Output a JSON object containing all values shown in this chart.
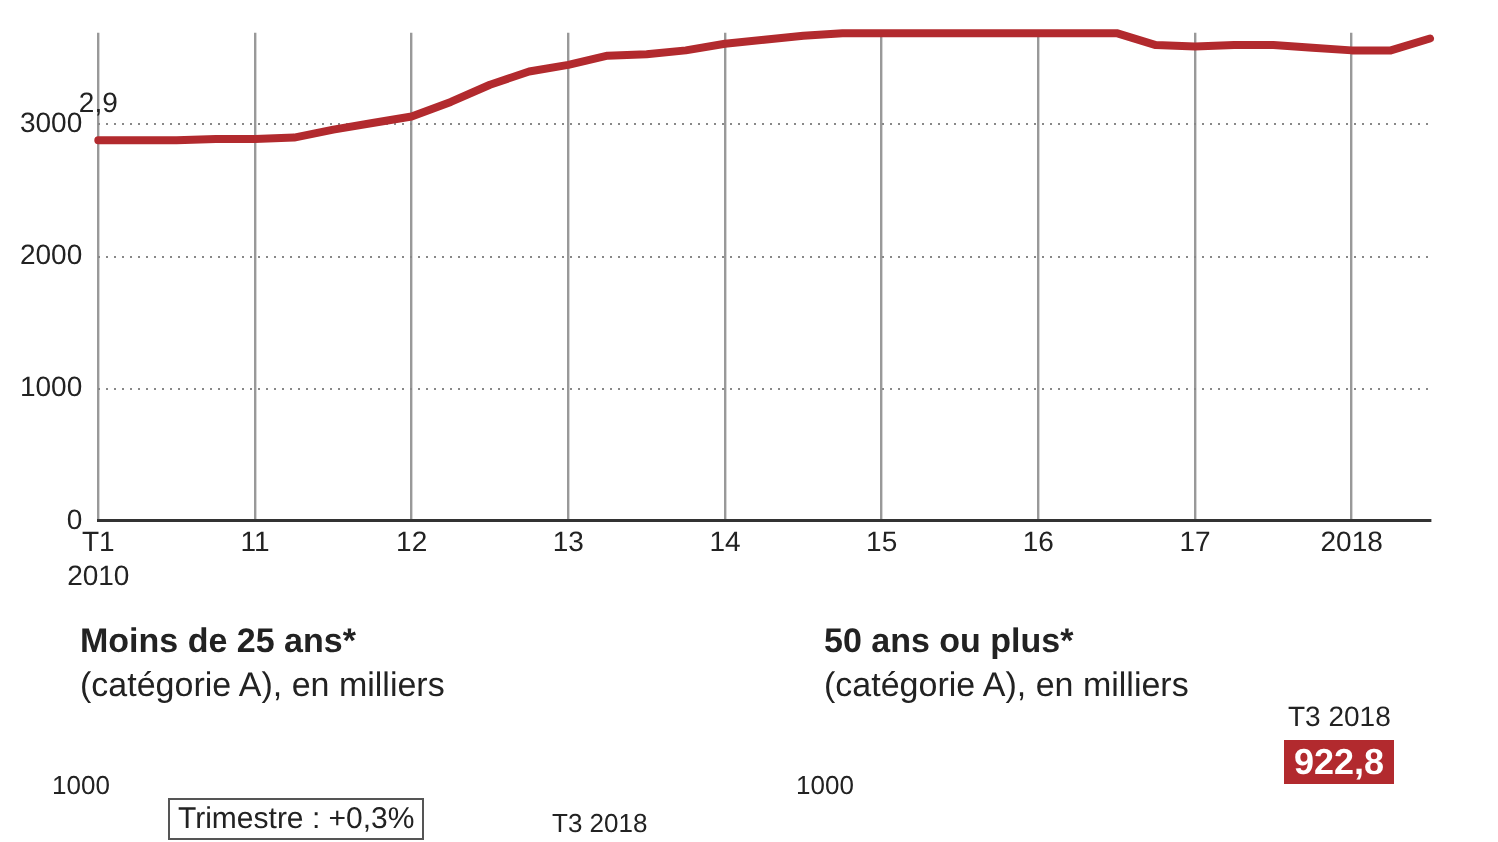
{
  "chart_data": [
    {
      "type": "line",
      "x": [
        2010,
        2010.25,
        2010.5,
        2010.75,
        2011,
        2011.25,
        2011.5,
        2011.75,
        2012,
        2012.25,
        2012.5,
        2012.75,
        2013,
        2013.25,
        2013.5,
        2013.75,
        2014,
        2014.25,
        2014.5,
        2014.75,
        2015,
        2015.25,
        2015.5,
        2015.75,
        2016,
        2016.25,
        2016.5,
        2016.75,
        2017,
        2017.25,
        2017.5,
        2017.75,
        2018,
        2018.25,
        2018.5
      ],
      "series": [
        {
          "color": "#b22a2e",
          "values": [
            2880,
            2880,
            2880,
            2890,
            2890,
            2900,
            2960,
            3010,
            3060,
            3170,
            3300,
            3400,
            3450,
            3520,
            3530,
            3560,
            3610,
            3640,
            3670,
            3690,
            3690,
            3690,
            3690,
            3690,
            3690,
            3690,
            3690,
            3600,
            3590,
            3600,
            3600,
            3580,
            3560,
            3560,
            3650
          ]
        }
      ],
      "xlim": [
        2010,
        2018.5
      ],
      "xticks": [
        {
          "value": 2010,
          "label": "T1\n2010"
        },
        {
          "value": 2011,
          "label": "11"
        },
        {
          "value": 2012,
          "label": "12"
        },
        {
          "value": 2013,
          "label": "13"
        },
        {
          "value": 2014,
          "label": "14"
        },
        {
          "value": 2015,
          "label": "15"
        },
        {
          "value": 2016,
          "label": "16"
        },
        {
          "value": 2017,
          "label": "17"
        },
        {
          "value": 2018,
          "label": "2018"
        }
      ],
      "ylim": [
        0,
        3693
      ],
      "yticks": [
        0,
        1000,
        2000,
        3000
      ],
      "grid": true,
      "legend": false,
      "annotations": [
        {
          "text": "2,9",
          "x": 2010,
          "y": 2880
        }
      ]
    },
    {
      "type": "other",
      "title": "Moins de 25 ans*",
      "subtitle": "(catégorie A), en milliers",
      "annotations": [
        "1000",
        "Trimestre : +0,3%",
        "T3 2018"
      ]
    },
    {
      "type": "other",
      "title": "50 ans ou plus*",
      "subtitle": "(catégorie A), en milliers",
      "annotations": [
        "1000",
        "T3 2018",
        "922,8"
      ]
    }
  ]
}
